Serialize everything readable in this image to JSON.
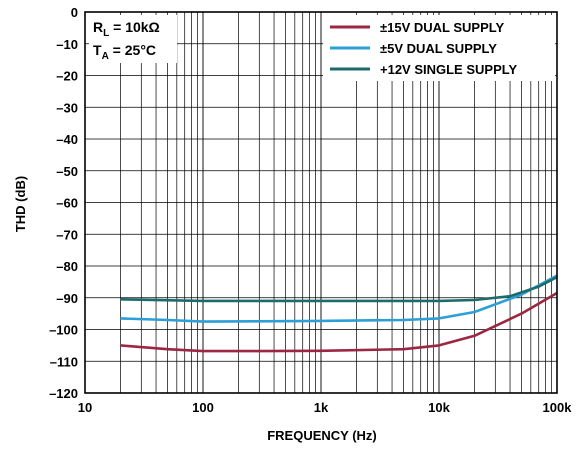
{
  "chart_data": {
    "type": "line",
    "xlabel": "FREQUENCY (Hz)",
    "ylabel": "THD (dB)",
    "xscale": "log",
    "xlim": [
      10,
      100000
    ],
    "ylim": [
      -120,
      0
    ],
    "grid": true,
    "legend_position": "top-right",
    "x_ticks": [
      {
        "value": 10,
        "label": "10"
      },
      {
        "value": 100,
        "label": "100"
      },
      {
        "value": 1000,
        "label": "1k"
      },
      {
        "value": 10000,
        "label": "10k"
      },
      {
        "value": 100000,
        "label": "100k"
      }
    ],
    "y_ticks": [
      0,
      -10,
      -20,
      -30,
      -40,
      -50,
      -60,
      -70,
      -80,
      -90,
      -100,
      -110,
      -120
    ],
    "y_tick_labels": [
      "0",
      "–10",
      "–20",
      "–30",
      "–40",
      "–50",
      "–60",
      "–70",
      "–80",
      "–90",
      "–100",
      "–110",
      "–120"
    ],
    "conditions": {
      "rl_main": "R",
      "rl_sub": "L",
      "rl_value": " = 10kΩ",
      "ta_main": "T",
      "ta_sub": "A",
      "ta_value": " = 25°C"
    },
    "series": [
      {
        "name": "±15V DUAL SUPPLY",
        "color": "#9b2743",
        "points": [
          [
            20,
            -105
          ],
          [
            50,
            -106.2
          ],
          [
            100,
            -106.8
          ],
          [
            300,
            -106.8
          ],
          [
            1000,
            -106.7
          ],
          [
            5000,
            -106.2
          ],
          [
            10000,
            -105
          ],
          [
            20000,
            -102
          ],
          [
            50000,
            -95
          ],
          [
            100000,
            -88.5
          ]
        ]
      },
      {
        "name": "±5V DUAL SUPPLY",
        "color": "#2b9fd6",
        "points": [
          [
            20,
            -96.5
          ],
          [
            50,
            -97
          ],
          [
            100,
            -97.5
          ],
          [
            1000,
            -97.3
          ],
          [
            5000,
            -97
          ],
          [
            10000,
            -96.5
          ],
          [
            20000,
            -94.5
          ],
          [
            50000,
            -89
          ],
          [
            100000,
            -83
          ]
        ]
      },
      {
        "name": "+12V SINGLE SUPPLY",
        "color": "#1d6b6b",
        "points": [
          [
            20,
            -90.5
          ],
          [
            100,
            -91
          ],
          [
            1000,
            -91
          ],
          [
            10000,
            -91
          ],
          [
            20000,
            -90.7
          ],
          [
            40000,
            -89.5
          ],
          [
            70000,
            -86.5
          ],
          [
            100000,
            -83.5
          ]
        ]
      }
    ]
  }
}
